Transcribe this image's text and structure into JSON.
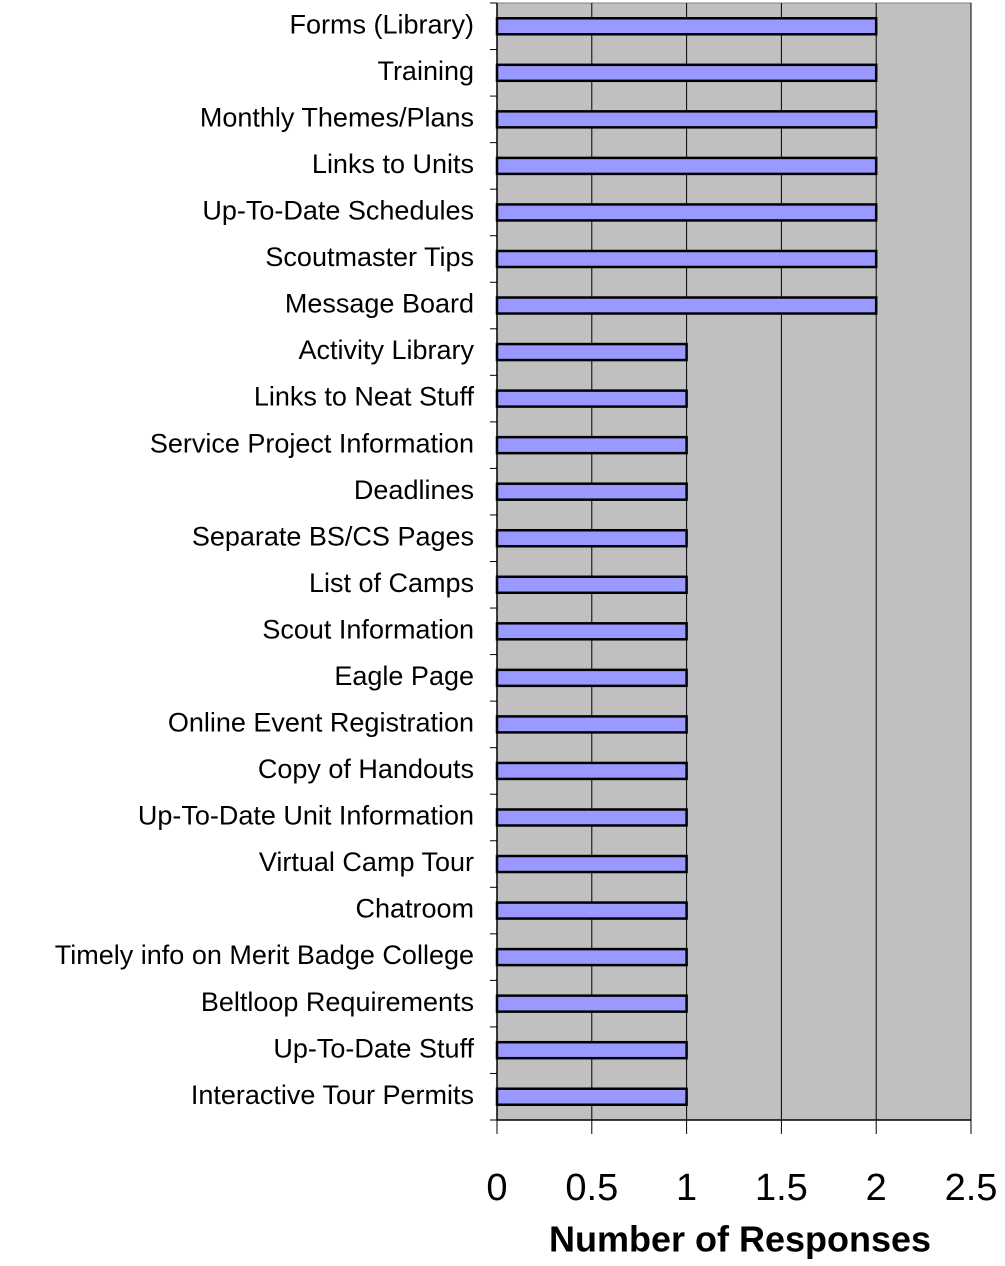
{
  "chart_data": {
    "type": "bar",
    "orientation": "horizontal",
    "x_label": "Number of Responses",
    "categories": [
      "Forms (Library)",
      "Training",
      "Monthly Themes/Plans",
      "Links to Units",
      "Up-To-Date Schedules",
      "Scoutmaster Tips",
      "Message Board",
      "Activity Library",
      "Links to Neat Stuff",
      "Service Project Information",
      "Deadlines",
      "Separate BS/CS Pages",
      "List of Camps",
      "Scout Information",
      "Eagle Page",
      "Online Event Registration",
      "Copy of Handouts",
      "Up-To-Date Unit Information",
      "Virtual Camp Tour",
      "Chatroom",
      "Timely info on Merit Badge College",
      "Beltloop Requirements",
      "Up-To-Date Stuff",
      "Interactive Tour Permits"
    ],
    "values": [
      2,
      2,
      2,
      2,
      2,
      2,
      2,
      1,
      1,
      1,
      1,
      1,
      1,
      1,
      1,
      1,
      1,
      1,
      1,
      1,
      1,
      1,
      1,
      1
    ],
    "color": "#9999ff",
    "plot_background": "#c0c0c0",
    "xlim": [
      0,
      2.5
    ],
    "xticks": [
      0,
      0.5,
      1,
      1.5,
      2,
      2.5
    ],
    "grid": true
  }
}
